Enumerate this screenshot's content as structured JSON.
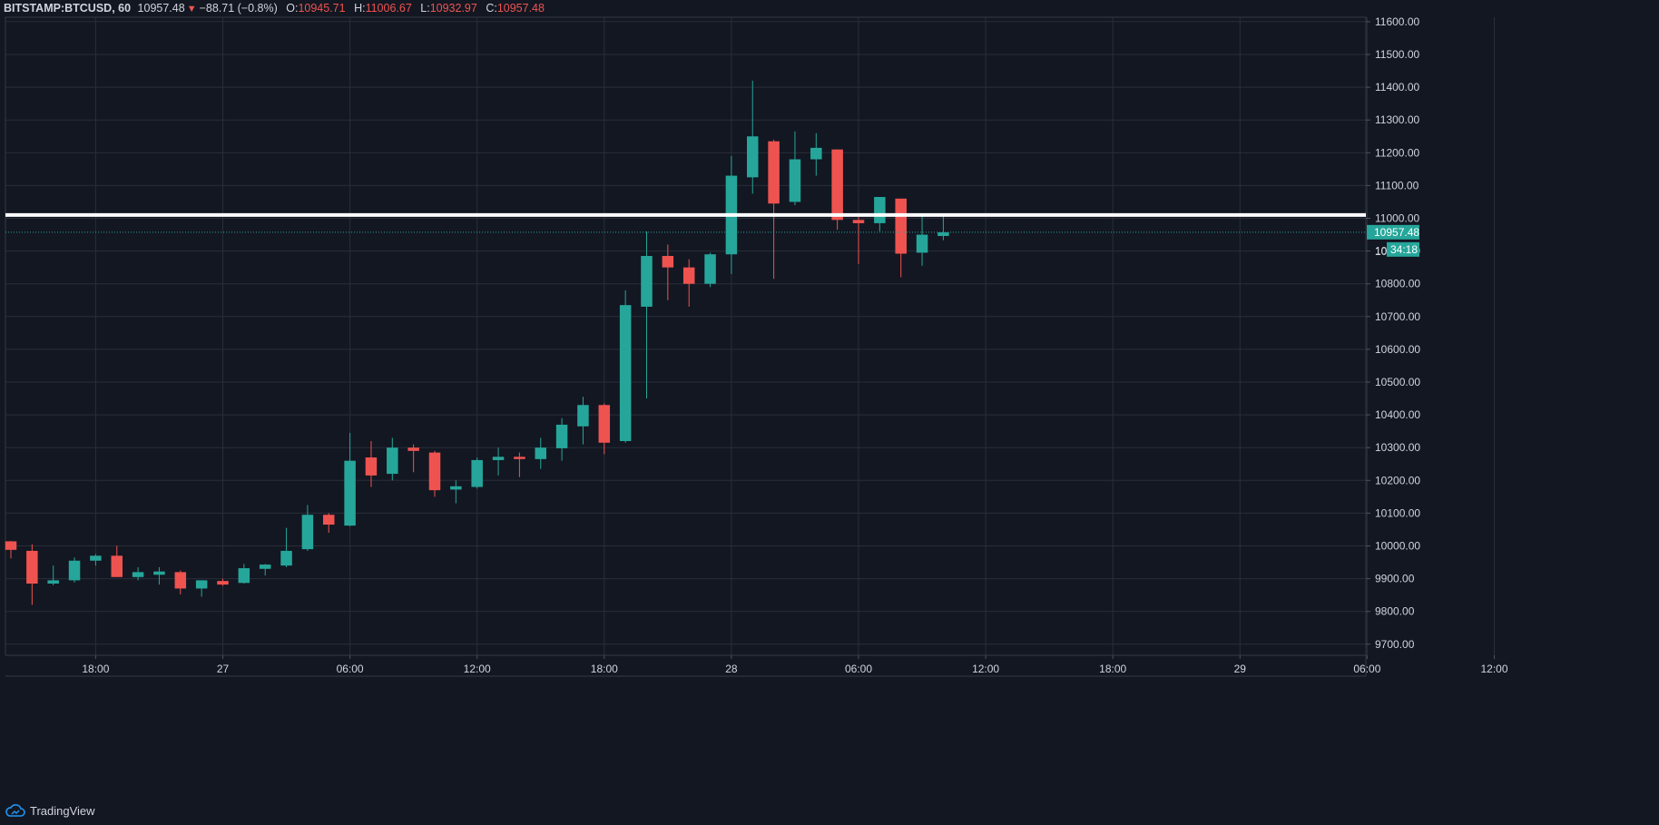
{
  "header": {
    "symbol": "BITSTAMP:BTCUSD, 60",
    "last": "10957.48",
    "change": "−88.71 (−0.8%)",
    "open_label": "O:",
    "open": "10945.71",
    "high_label": "H:",
    "high": "11006.67",
    "low_label": "L:",
    "low": "10932.97",
    "close_label": "C:",
    "close": "10957.48"
  },
  "price_tags": {
    "last_price": "10957.48",
    "countdown": "34:18",
    "partial_label": "109"
  },
  "footer": {
    "brand": "TradingView"
  },
  "colors": {
    "background": "#131722",
    "grid": "#2a2e39",
    "up": "#26a69a",
    "down": "#ef5350",
    "text": "#d1d4dc",
    "resistance_line": "#ffffff"
  },
  "chart_data": {
    "type": "candlestick",
    "title": "BITSTAMP:BTCUSD, 60",
    "y_ticks": [
      9700,
      9800,
      9900,
      10000,
      10100,
      10200,
      10300,
      10400,
      10500,
      10600,
      10700,
      10800,
      10900,
      11000,
      11100,
      11200,
      11300,
      11400,
      11500,
      11600
    ],
    "y_tick_labels": [
      "9700.00",
      "9800.00",
      "9900.00",
      "10000.00",
      "10100.00",
      "10200.00",
      "10300.00",
      "10400.00",
      "10500.00",
      "10600.00",
      "10700.00",
      "10800.00",
      "10900.00",
      "11000.00",
      "11100.00",
      "11200.00",
      "11300.00",
      "11400.00",
      "11500.00",
      "11600.00"
    ],
    "ylim": [
      9670,
      11640
    ],
    "x_labels": [
      {
        "slot": 4,
        "text": "18:00"
      },
      {
        "slot": 10,
        "text": "27"
      },
      {
        "slot": 16,
        "text": "06:00"
      },
      {
        "slot": 22,
        "text": "12:00"
      },
      {
        "slot": 28,
        "text": "18:00"
      },
      {
        "slot": 34,
        "text": "28"
      },
      {
        "slot": 40,
        "text": "06:00"
      },
      {
        "slot": 46,
        "text": "12:00"
      },
      {
        "slot": 52,
        "text": "18:00"
      },
      {
        "slot": 58,
        "text": "29"
      },
      {
        "slot": 64,
        "text": "06:00"
      },
      {
        "slot": 70,
        "text": "12:00"
      }
    ],
    "horizontal_lines": [
      {
        "price": 11010,
        "style": "solid",
        "color": "#ffffff"
      },
      {
        "price": 10957.48,
        "style": "dotted",
        "color": "#26a69a"
      }
    ],
    "candles": [
      {
        "o": 10014,
        "h": 10015,
        "l": 9962,
        "c": 9988
      },
      {
        "o": 9985,
        "h": 10005,
        "l": 9820,
        "c": 9885
      },
      {
        "o": 9885,
        "h": 9940,
        "l": 9880,
        "c": 9895
      },
      {
        "o": 9895,
        "h": 9965,
        "l": 9888,
        "c": 9955
      },
      {
        "o": 9955,
        "h": 9975,
        "l": 9940,
        "c": 9970
      },
      {
        "o": 9970,
        "h": 10000,
        "l": 9905,
        "c": 9905
      },
      {
        "o": 9905,
        "h": 9935,
        "l": 9895,
        "c": 9920
      },
      {
        "o": 9912,
        "h": 9935,
        "l": 9882,
        "c": 9922
      },
      {
        "o": 9920,
        "h": 9925,
        "l": 9852,
        "c": 9870
      },
      {
        "o": 9870,
        "h": 9895,
        "l": 9845,
        "c": 9895
      },
      {
        "o": 9893,
        "h": 9900,
        "l": 9878,
        "c": 9882
      },
      {
        "o": 9887,
        "h": 9945,
        "l": 9885,
        "c": 9932
      },
      {
        "o": 9930,
        "h": 9945,
        "l": 9910,
        "c": 9943
      },
      {
        "o": 9940,
        "h": 10055,
        "l": 9935,
        "c": 9985
      },
      {
        "o": 9990,
        "h": 10125,
        "l": 9985,
        "c": 10095
      },
      {
        "o": 10095,
        "h": 10100,
        "l": 10040,
        "c": 10065
      },
      {
        "o": 10062,
        "h": 10345,
        "l": 10060,
        "c": 10260
      },
      {
        "o": 10270,
        "h": 10320,
        "l": 10180,
        "c": 10215
      },
      {
        "o": 10220,
        "h": 10330,
        "l": 10200,
        "c": 10300
      },
      {
        "o": 10300,
        "h": 10310,
        "l": 10225,
        "c": 10290
      },
      {
        "o": 10285,
        "h": 10290,
        "l": 10150,
        "c": 10170
      },
      {
        "o": 10172,
        "h": 10200,
        "l": 10130,
        "c": 10182
      },
      {
        "o": 10180,
        "h": 10270,
        "l": 10175,
        "c": 10262
      },
      {
        "o": 10262,
        "h": 10300,
        "l": 10215,
        "c": 10272
      },
      {
        "o": 10272,
        "h": 10285,
        "l": 10210,
        "c": 10265
      },
      {
        "o": 10265,
        "h": 10330,
        "l": 10235,
        "c": 10300
      },
      {
        "o": 10298,
        "h": 10390,
        "l": 10260,
        "c": 10370
      },
      {
        "o": 10365,
        "h": 10455,
        "l": 10310,
        "c": 10430
      },
      {
        "o": 10430,
        "h": 10435,
        "l": 10280,
        "c": 10315
      },
      {
        "o": 10320,
        "h": 10780,
        "l": 10315,
        "c": 10735
      },
      {
        "o": 10730,
        "h": 10960,
        "l": 10450,
        "c": 10885
      },
      {
        "o": 10885,
        "h": 10920,
        "l": 10750,
        "c": 10850
      },
      {
        "o": 10850,
        "h": 10875,
        "l": 10730,
        "c": 10800
      },
      {
        "o": 10800,
        "h": 10895,
        "l": 10790,
        "c": 10890
      },
      {
        "o": 10890,
        "h": 11190,
        "l": 10830,
        "c": 11130
      },
      {
        "o": 11125,
        "h": 11420,
        "l": 11075,
        "c": 11250
      },
      {
        "o": 11235,
        "h": 11240,
        "l": 10815,
        "c": 11045
      },
      {
        "o": 11050,
        "h": 11265,
        "l": 11040,
        "c": 11180
      },
      {
        "o": 11180,
        "h": 11260,
        "l": 11130,
        "c": 11215
      },
      {
        "o": 11210,
        "h": 11210,
        "l": 10965,
        "c": 10995
      },
      {
        "o": 10995,
        "h": 11005,
        "l": 10860,
        "c": 10985
      },
      {
        "o": 10985,
        "h": 11065,
        "l": 10960,
        "c": 11065
      },
      {
        "o": 11060,
        "h": 11060,
        "l": 10820,
        "c": 10892
      },
      {
        "o": 10895,
        "h": 11015,
        "l": 10855,
        "c": 10950
      },
      {
        "o": 10946,
        "h": 11007,
        "l": 10933,
        "c": 10957
      }
    ]
  }
}
